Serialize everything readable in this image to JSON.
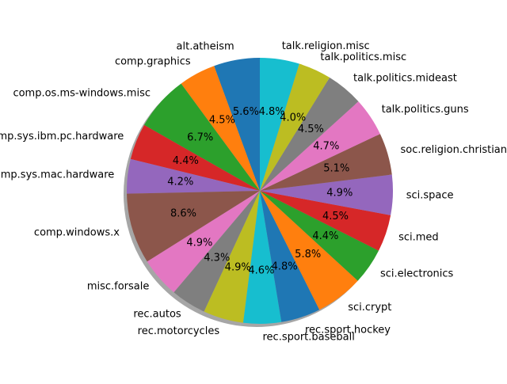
{
  "chart_data": {
    "type": "pie",
    "title": "",
    "start_angle_deg": 90,
    "direction": "counterclockwise",
    "shadow": true,
    "autopct_format": "%.1f%%",
    "slices": [
      {
        "label": "alt.atheism",
        "value": 5.6,
        "pct_label": "5.6%",
        "color": "#1f77b4"
      },
      {
        "label": "comp.graphics",
        "value": 4.5,
        "pct_label": "4.5%",
        "color": "#ff7f0e"
      },
      {
        "label": "comp.os.ms-windows.misc",
        "value": 6.7,
        "pct_label": "6.7%",
        "color": "#2ca02c"
      },
      {
        "label": "comp.sys.ibm.pc.hardware",
        "value": 4.4,
        "pct_label": "4.4%",
        "color": "#d62728"
      },
      {
        "label": "comp.sys.mac.hardware",
        "value": 4.2,
        "pct_label": "4.2%",
        "color": "#9467bd"
      },
      {
        "label": "comp.windows.x",
        "value": 8.6,
        "pct_label": "8.6%",
        "color": "#8c564b"
      },
      {
        "label": "misc.forsale",
        "value": 4.9,
        "pct_label": "4.9%",
        "color": "#e377c2"
      },
      {
        "label": "rec.autos",
        "value": 4.3,
        "pct_label": "4.3%",
        "color": "#7f7f7f"
      },
      {
        "label": "rec.motorcycles",
        "value": 4.9,
        "pct_label": "4.9%",
        "color": "#bcbd22"
      },
      {
        "label": "rec.sport.baseball",
        "value": 4.6,
        "pct_label": "4.6%",
        "color": "#17becf"
      },
      {
        "label": "rec.sport.hockey",
        "value": 4.8,
        "pct_label": "4.8%",
        "color": "#1f77b4"
      },
      {
        "label": "sci.crypt",
        "value": 5.8,
        "pct_label": "5.8%",
        "color": "#ff7f0e"
      },
      {
        "label": "sci.electronics",
        "value": 4.4,
        "pct_label": "4.4%",
        "color": "#2ca02c"
      },
      {
        "label": "sci.med",
        "value": 4.5,
        "pct_label": "4.5%",
        "color": "#d62728"
      },
      {
        "label": "sci.space",
        "value": 4.9,
        "pct_label": "4.9%",
        "color": "#9467bd"
      },
      {
        "label": "soc.religion.christian",
        "value": 5.1,
        "pct_label": "5.1%",
        "color": "#8c564b"
      },
      {
        "label": "talk.politics.guns",
        "value": 4.7,
        "pct_label": "4.7%",
        "color": "#e377c2"
      },
      {
        "label": "talk.politics.mideast",
        "value": 4.5,
        "pct_label": "4.5%",
        "color": "#7f7f7f"
      },
      {
        "label": "talk.politics.misc",
        "value": 4.0,
        "pct_label": "4.0%",
        "color": "#bcbd22"
      },
      {
        "label": "talk.religion.misc",
        "value": 4.8,
        "pct_label": "4.8%",
        "color": "#17becf"
      }
    ]
  }
}
